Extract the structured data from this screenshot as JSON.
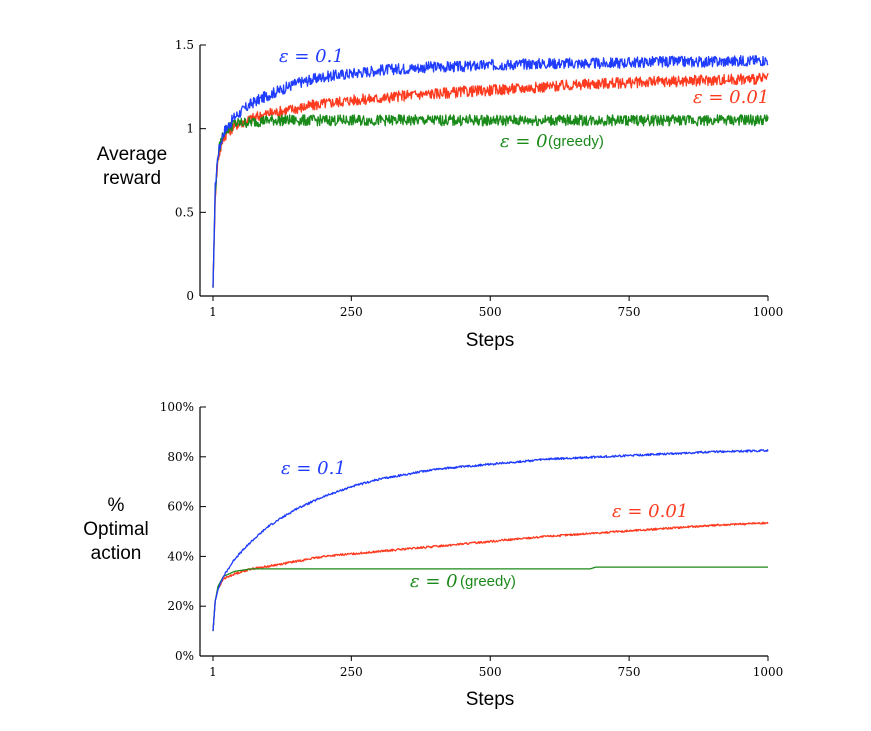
{
  "chart_data": [
    {
      "type": "line",
      "xlabel": "Steps",
      "ylabel_lines": [
        "Average",
        "reward"
      ],
      "xticks": [
        "1",
        "250",
        "500",
        "750",
        "1000"
      ],
      "yticks": [
        "0",
        "0.5",
        "1",
        "1.5"
      ],
      "xlim": [
        1,
        1000
      ],
      "ylim": [
        0,
        1.5
      ],
      "series": [
        {
          "name": "ε = 0.1",
          "color": "#1f3cff",
          "x": [
            1,
            5,
            10,
            20,
            40,
            70,
            100,
            150,
            200,
            250,
            300,
            350,
            400,
            450,
            500,
            600,
            700,
            800,
            900,
            1000
          ],
          "y": [
            0.05,
            0.65,
            0.85,
            0.98,
            1.07,
            1.15,
            1.2,
            1.27,
            1.31,
            1.33,
            1.35,
            1.36,
            1.37,
            1.37,
            1.38,
            1.39,
            1.39,
            1.4,
            1.4,
            1.41
          ]
        },
        {
          "name": "ε = 0.01",
          "color": "#ff3b1f",
          "x": [
            1,
            5,
            10,
            20,
            40,
            70,
            100,
            150,
            200,
            250,
            300,
            350,
            400,
            450,
            500,
            600,
            700,
            800,
            900,
            1000
          ],
          "y": [
            0.05,
            0.6,
            0.82,
            0.95,
            1.02,
            1.06,
            1.09,
            1.12,
            1.15,
            1.17,
            1.18,
            1.2,
            1.21,
            1.22,
            1.23,
            1.25,
            1.27,
            1.28,
            1.29,
            1.3
          ]
        },
        {
          "name": "ε = 0 (greedy)",
          "color": "#1a8a1a",
          "x": [
            1,
            5,
            10,
            20,
            40,
            70,
            100,
            150,
            200,
            250,
            300,
            400,
            500,
            600,
            700,
            800,
            900,
            1000
          ],
          "y": [
            0.05,
            0.62,
            0.85,
            0.98,
            1.03,
            1.04,
            1.05,
            1.05,
            1.05,
            1.05,
            1.05,
            1.05,
            1.05,
            1.05,
            1.05,
            1.05,
            1.05,
            1.05
          ]
        }
      ]
    },
    {
      "type": "line",
      "xlabel": "Steps",
      "ylabel_lines": [
        "%",
        "Optimal",
        "action"
      ],
      "xticks": [
        "1",
        "250",
        "500",
        "750",
        "1000"
      ],
      "yticks": [
        "0%",
        "20%",
        "40%",
        "60%",
        "80%",
        "100%"
      ],
      "xlim": [
        1,
        1000
      ],
      "ylim": [
        0,
        100
      ],
      "series": [
        {
          "name": "ε = 0.1",
          "color": "#1f3cff",
          "x": [
            1,
            5,
            10,
            20,
            40,
            70,
            100,
            150,
            200,
            250,
            300,
            350,
            400,
            450,
            500,
            600,
            700,
            800,
            900,
            1000
          ],
          "y": [
            10,
            22,
            27,
            32,
            39,
            46,
            52,
            59,
            64,
            68,
            71,
            73,
            75,
            76,
            77,
            79,
            80,
            81,
            82,
            82.5
          ]
        },
        {
          "name": "ε = 0.01",
          "color": "#ff3b1f",
          "x": [
            1,
            5,
            10,
            20,
            40,
            70,
            100,
            150,
            200,
            250,
            300,
            350,
            400,
            450,
            500,
            600,
            700,
            800,
            900,
            1000
          ],
          "y": [
            10,
            22,
            27,
            31,
            33,
            35,
            36,
            38,
            40,
            41,
            42,
            43,
            44,
            45,
            46,
            48,
            49.5,
            51,
            52.5,
            53.5
          ]
        },
        {
          "name": "ε = 0 (greedy)",
          "color": "#1a8a1a",
          "x": [
            1,
            5,
            10,
            20,
            40,
            70,
            100,
            200,
            300,
            400,
            500,
            600,
            680,
            690,
            800,
            900,
            1000
          ],
          "y": [
            10,
            22,
            28,
            32,
            34,
            35,
            35,
            35,
            35,
            35,
            35,
            35,
            35,
            35.7,
            35.7,
            35.7,
            35.7
          ]
        }
      ]
    }
  ],
  "labels": {
    "top": {
      "eps01": "ε = 0.1",
      "eps001": "ε = 0.01",
      "eps0": "ε = 0",
      "greedy": "(greedy)"
    },
    "bottom": {
      "eps01": "ε = 0.1",
      "eps001": "ε = 0.01",
      "eps0": "ε = 0",
      "greedy": "(greedy)"
    }
  }
}
